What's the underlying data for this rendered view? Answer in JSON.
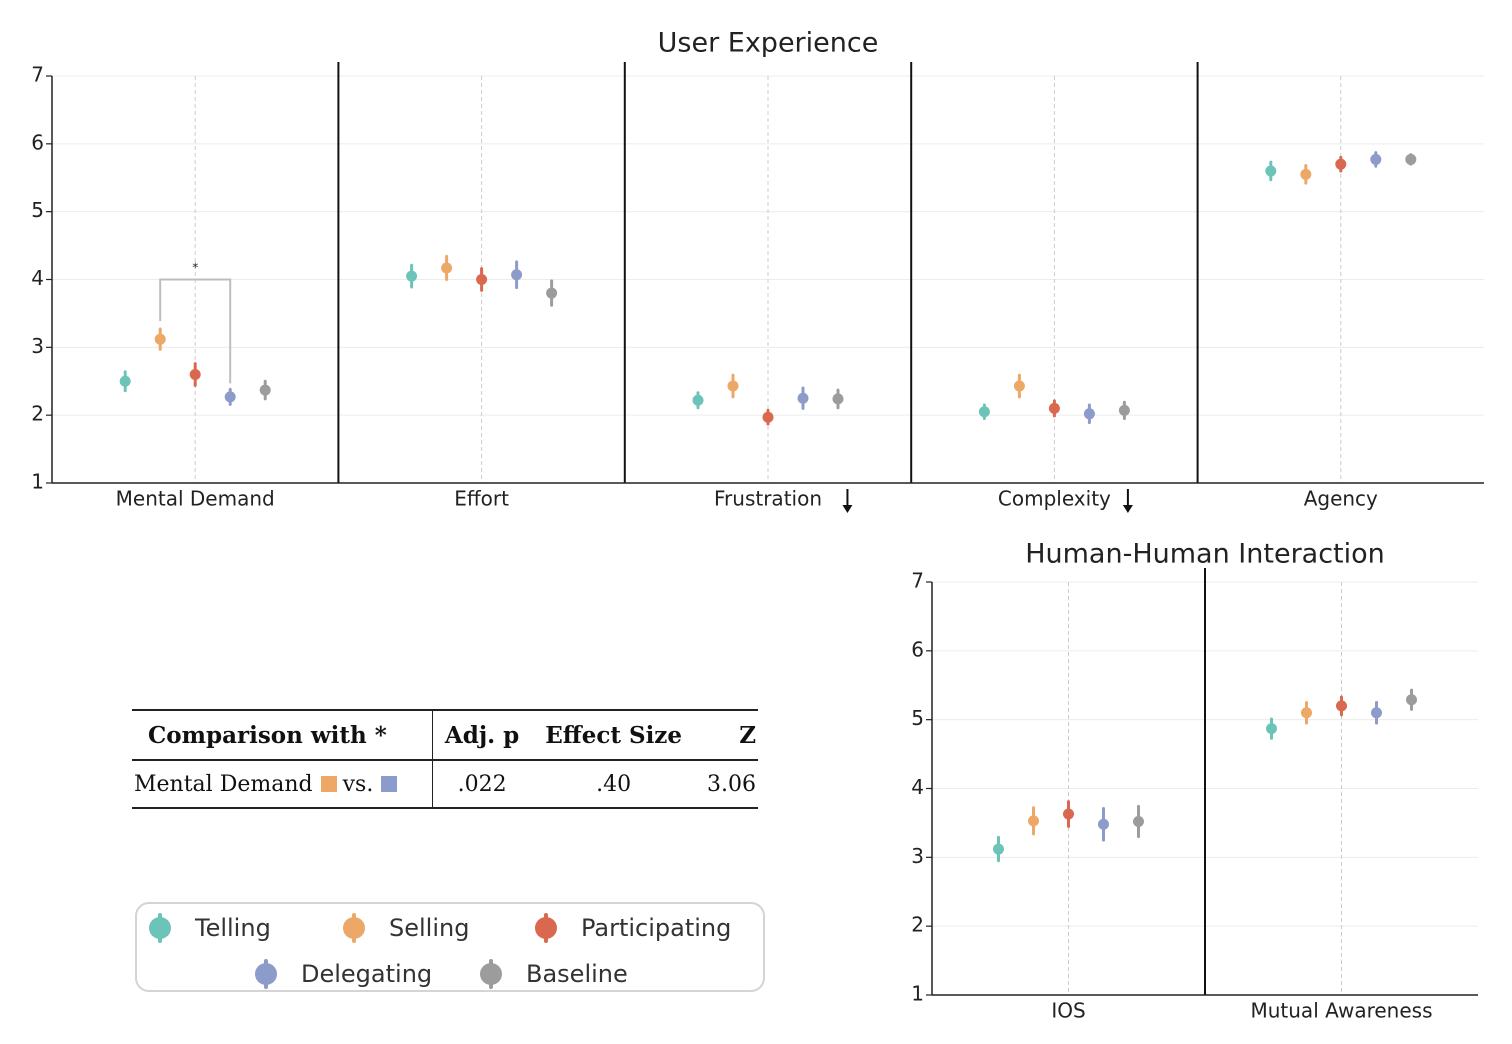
{
  "chart_data": [
    {
      "type": "scatter",
      "title": "User Experience",
      "ylim": [
        1,
        7
      ],
      "yticks": [
        "1",
        "2",
        "3",
        "4",
        "5",
        "6",
        "7"
      ],
      "grid": true,
      "categories": [
        "Mental Demand",
        "Effort",
        "Frustration",
        "Complexity",
        "Agency"
      ],
      "down_arrow_categories": [
        "Frustration",
        "Complexity"
      ],
      "series": [
        {
          "name": "Telling",
          "color": "#6cc4b8",
          "values": [
            2.5,
            4.05,
            2.22,
            2.05,
            5.6
          ],
          "errors": [
            0.14,
            0.16,
            0.11,
            0.1,
            0.13
          ]
        },
        {
          "name": "Selling",
          "color": "#eda868",
          "values": [
            3.12,
            4.17,
            2.43,
            2.43,
            5.55
          ],
          "errors": [
            0.15,
            0.17,
            0.16,
            0.16,
            0.13
          ]
        },
        {
          "name": "Participating",
          "color": "#d9684e",
          "values": [
            2.6,
            4.0,
            1.97,
            2.1,
            5.7
          ],
          "errors": [
            0.16,
            0.16,
            0.1,
            0.11,
            0.1
          ]
        },
        {
          "name": "Delegating",
          "color": "#8d9bcb",
          "values": [
            2.27,
            4.07,
            2.25,
            2.02,
            5.77
          ],
          "errors": [
            0.11,
            0.19,
            0.15,
            0.13,
            0.1
          ]
        },
        {
          "name": "Baseline",
          "color": "#9c9c9c",
          "values": [
            2.37,
            3.8,
            2.24,
            2.07,
            5.77
          ],
          "errors": [
            0.13,
            0.18,
            0.13,
            0.12,
            0.07
          ]
        }
      ],
      "significance": [
        {
          "category": "Mental Demand",
          "from": "Selling",
          "to": "Delegating",
          "label": "*",
          "y": 4.0
        }
      ]
    },
    {
      "type": "scatter",
      "title": "Human-Human Interaction",
      "ylim": [
        1,
        7
      ],
      "yticks": [
        "1",
        "2",
        "3",
        "4",
        "5",
        "6",
        "7"
      ],
      "grid": true,
      "categories": [
        "IOS",
        "Mutual Awareness"
      ],
      "down_arrow_categories": [],
      "series": [
        {
          "name": "Telling",
          "color": "#6cc4b8",
          "values": [
            3.12,
            4.87
          ],
          "errors": [
            0.17,
            0.14
          ]
        },
        {
          "name": "Selling",
          "color": "#eda868",
          "values": [
            3.53,
            5.1
          ],
          "errors": [
            0.19,
            0.15
          ]
        },
        {
          "name": "Participating",
          "color": "#d9684e",
          "values": [
            3.63,
            5.2
          ],
          "errors": [
            0.18,
            0.13
          ]
        },
        {
          "name": "Delegating",
          "color": "#8d9bcb",
          "values": [
            3.48,
            5.1
          ],
          "errors": [
            0.23,
            0.15
          ]
        },
        {
          "name": "Baseline",
          "color": "#9c9c9c",
          "values": [
            3.52,
            5.29
          ],
          "errors": [
            0.22,
            0.14
          ]
        }
      ],
      "significance": []
    }
  ],
  "stats_table": {
    "headers": [
      "Comparison with *",
      "Adj. p",
      "Effect Size",
      "Z"
    ],
    "rows": [
      {
        "label": "Mental Demand",
        "vs": "vs.",
        "color_a": "#eda868",
        "color_b": "#8d9bcb",
        "p": ".022",
        "effect": ".40",
        "z": "3.06"
      }
    ]
  },
  "legend": [
    {
      "name": "Telling",
      "color": "#6cc4b8"
    },
    {
      "name": "Selling",
      "color": "#eda868"
    },
    {
      "name": "Participating",
      "color": "#d9684e"
    },
    {
      "name": "Delegating",
      "color": "#8d9bcb"
    },
    {
      "name": "Baseline",
      "color": "#9c9c9c"
    }
  ]
}
